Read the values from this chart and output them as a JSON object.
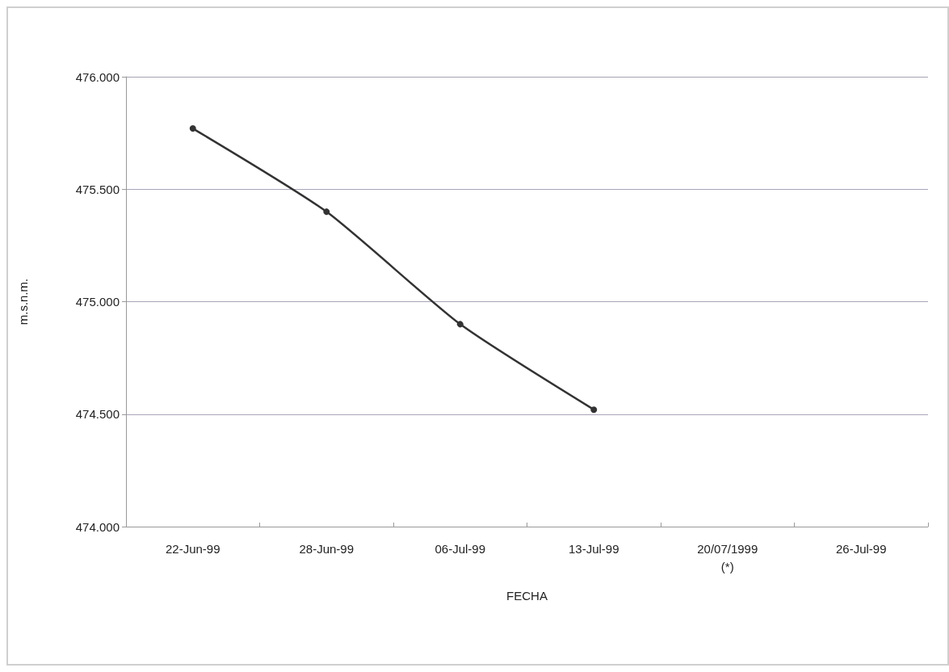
{
  "chart_data": {
    "type": "line",
    "xlabel": "FECHA",
    "ylabel": "m.s.n.m.",
    "categories": [
      "22-Jun-99",
      "28-Jun-99",
      "06-Jul-99",
      "13-Jul-99",
      "20/07/1999\n(*)",
      "26-Jul-99"
    ],
    "series": [
      {
        "color": "#333333",
        "values": [
          475.77,
          475.4,
          474.9,
          474.52,
          null,
          null
        ]
      }
    ],
    "ylim": [
      474,
      476
    ],
    "yticks": [
      {
        "value": 474,
        "label": "474.000"
      },
      {
        "value": 474.5,
        "label": "474.500"
      },
      {
        "value": 475,
        "label": "475.000"
      },
      {
        "value": 475.5,
        "label": "475.500"
      },
      {
        "value": 476,
        "label": "476.000"
      }
    ],
    "grid": "y",
    "marker": "circle",
    "line_style": "solid"
  }
}
